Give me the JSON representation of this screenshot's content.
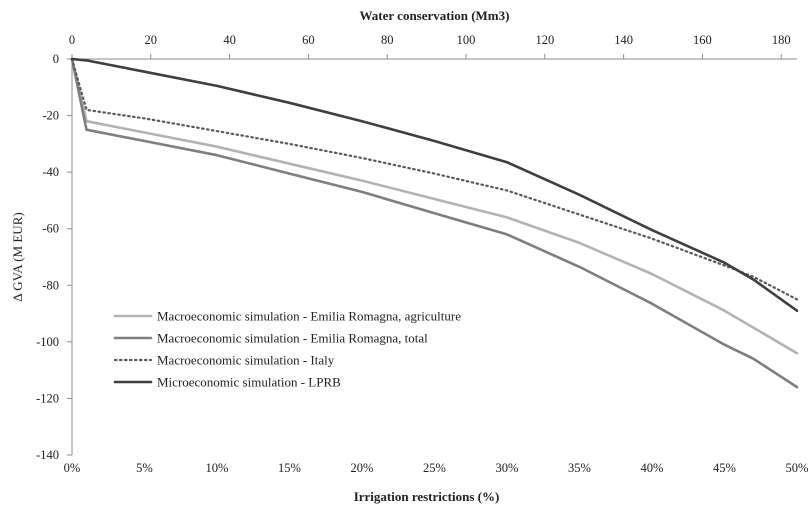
{
  "chart_data": {
    "type": "line",
    "title": "",
    "xlabel": "Irrigation restrictions (%)",
    "x2label": "Water conservation (Mm3)",
    "ylabel": "Δ GVA (M EUR)",
    "xlim": [
      0,
      50
    ],
    "x2lim": [
      0,
      184
    ],
    "ylim": [
      -140,
      0
    ],
    "x_ticks": [
      0,
      5,
      10,
      15,
      20,
      25,
      30,
      35,
      40,
      45,
      50
    ],
    "x_tick_labels": [
      "0%",
      "5%",
      "10%",
      "15%",
      "20%",
      "25%",
      "30%",
      "35%",
      "40%",
      "45%",
      "50%"
    ],
    "x2_ticks": [
      0,
      20,
      40,
      60,
      80,
      100,
      120,
      140,
      160,
      180
    ],
    "x2_tick_labels": [
      "0",
      "20",
      "40",
      "60",
      "80",
      "100",
      "120",
      "140",
      "160",
      "180"
    ],
    "y_ticks": [
      0,
      -20,
      -40,
      -60,
      -80,
      -100,
      -120,
      -140
    ],
    "y_tick_labels": [
      "0",
      "-20",
      "-40",
      "-60",
      "-80",
      "-100",
      "-120",
      "-140"
    ],
    "grid": false,
    "legend_position": "bottom-left",
    "series": [
      {
        "name": "Macroeconomic simulation - Emilia Romagna, agriculture",
        "color": "#b3b3b3",
        "dash": "solid",
        "x": [
          0,
          1,
          5,
          10,
          15,
          20,
          25,
          30,
          35,
          40,
          45,
          47,
          50
        ],
        "y": [
          0,
          -22,
          -26,
          -31,
          -37,
          -43,
          -49.5,
          -56,
          -65,
          -76,
          -89,
          -95,
          -104
        ]
      },
      {
        "name": "Macroeconomic simulation - Emilia Romagna, total",
        "color": "#7f7f7f",
        "dash": "solid",
        "x": [
          0,
          1,
          5,
          10,
          15,
          20,
          25,
          30,
          35,
          40,
          45,
          47,
          50
        ],
        "y": [
          0,
          -25,
          -29,
          -34,
          -40.5,
          -47,
          -54.5,
          -62,
          -73.5,
          -86.5,
          -101,
          -106,
          -116
        ]
      },
      {
        "name": "Macroeconomic simulation - Italy",
        "color": "#595959",
        "dash": "dotted",
        "x": [
          0,
          1,
          5,
          10,
          15,
          20,
          25,
          30,
          35,
          40,
          45,
          47,
          50
        ],
        "y": [
          0,
          -18,
          -21,
          -25.5,
          -30,
          -35,
          -40.5,
          -46.5,
          -55,
          -63.5,
          -73,
          -77,
          -85
        ]
      },
      {
        "name": "Microeconomic simulation - LPRB",
        "color": "#3f3f3f",
        "dash": "solid",
        "x": [
          0,
          1,
          5,
          10,
          15,
          20,
          25,
          30,
          35,
          40,
          45,
          47,
          50
        ],
        "y": [
          0,
          -0.5,
          -4.5,
          -9.5,
          -15.5,
          -22,
          -29,
          -36.5,
          -48,
          -60.5,
          -72,
          -78,
          -89
        ]
      }
    ]
  }
}
